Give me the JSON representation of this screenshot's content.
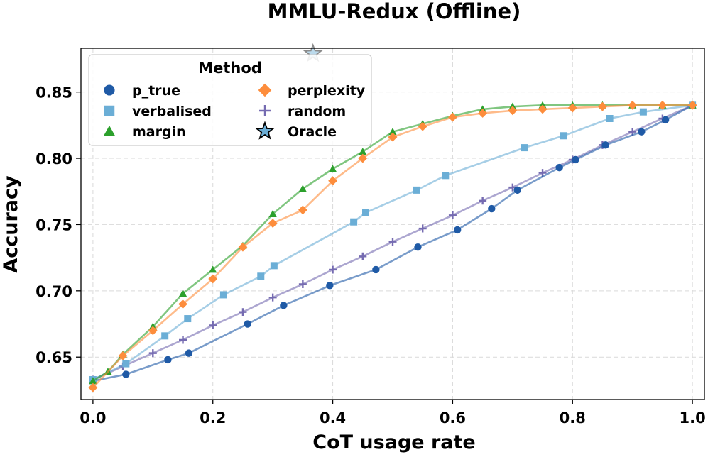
{
  "chart_data": {
    "type": "line",
    "title": "MMLU-Redux (Offline)",
    "xlabel": "CoT usage rate",
    "ylabel": "Accuracy",
    "xlim": [
      -0.02,
      1.02
    ],
    "ylim": [
      0.618,
      0.883
    ],
    "xticks": [
      0.0,
      0.2,
      0.4,
      0.6,
      0.8,
      1.0
    ],
    "xtick_labels": [
      "0.0",
      "0.2",
      "0.4",
      "0.6",
      "0.8",
      "1.0"
    ],
    "yticks": [
      0.65,
      0.7,
      0.75,
      0.8,
      0.85
    ],
    "ytick_labels": [
      "0.65",
      "0.70",
      "0.75",
      "0.80",
      "0.85"
    ],
    "grid": true,
    "legend": {
      "title": "Method",
      "position": "top-left",
      "columns": 2
    },
    "series": [
      {
        "name": "p_true",
        "color": "#1f5aa6",
        "marker": "circle",
        "x": [
          0.0,
          0.055,
          0.125,
          0.16,
          0.258,
          0.318,
          0.395,
          0.472,
          0.542,
          0.608,
          0.665,
          0.708,
          0.778,
          0.805,
          0.855,
          0.915,
          0.955,
          1.0
        ],
        "y": [
          0.632,
          0.637,
          0.648,
          0.653,
          0.675,
          0.689,
          0.704,
          0.716,
          0.733,
          0.746,
          0.762,
          0.776,
          0.793,
          0.799,
          0.81,
          0.82,
          0.829,
          0.84
        ]
      },
      {
        "name": "verbalised",
        "color": "#6baed6",
        "marker": "square",
        "x": [
          0.0,
          0.055,
          0.12,
          0.158,
          0.218,
          0.28,
          0.302,
          0.435,
          0.455,
          0.54,
          0.588,
          0.72,
          0.785,
          0.862,
          0.918,
          1.0
        ],
        "y": [
          0.633,
          0.645,
          0.666,
          0.679,
          0.697,
          0.711,
          0.719,
          0.752,
          0.759,
          0.776,
          0.787,
          0.808,
          0.817,
          0.83,
          0.835,
          0.84
        ]
      },
      {
        "name": "margin",
        "color": "#2ca02c",
        "marker": "triangle",
        "x": [
          0.0,
          0.025,
          0.05,
          0.1,
          0.15,
          0.2,
          0.25,
          0.3,
          0.35,
          0.4,
          0.45,
          0.5,
          0.55,
          0.6,
          0.65,
          0.7,
          0.75,
          0.8,
          0.85,
          0.9,
          0.95,
          1.0
        ],
        "y": [
          0.632,
          0.639,
          0.652,
          0.673,
          0.698,
          0.716,
          0.734,
          0.758,
          0.777,
          0.792,
          0.805,
          0.82,
          0.826,
          0.832,
          0.837,
          0.839,
          0.84,
          0.84,
          0.84,
          0.84,
          0.84,
          0.84
        ]
      },
      {
        "name": "perplexity",
        "color": "#fd8d3c",
        "marker": "diamond",
        "x": [
          0.0,
          0.05,
          0.1,
          0.15,
          0.2,
          0.25,
          0.3,
          0.35,
          0.4,
          0.45,
          0.5,
          0.55,
          0.6,
          0.65,
          0.7,
          0.75,
          0.8,
          0.85,
          0.9,
          0.95,
          1.0
        ],
        "y": [
          0.627,
          0.651,
          0.67,
          0.69,
          0.709,
          0.733,
          0.751,
          0.761,
          0.783,
          0.8,
          0.816,
          0.824,
          0.831,
          0.834,
          0.836,
          0.837,
          0.838,
          0.839,
          0.84,
          0.84,
          0.84
        ]
      },
      {
        "name": "random",
        "color": "#756bb1",
        "marker": "plus",
        "x": [
          0.0,
          0.05,
          0.1,
          0.15,
          0.2,
          0.25,
          0.3,
          0.35,
          0.4,
          0.45,
          0.5,
          0.55,
          0.6,
          0.65,
          0.7,
          0.75,
          0.8,
          0.85,
          0.9,
          0.95,
          1.0
        ],
        "y": [
          0.633,
          0.643,
          0.653,
          0.663,
          0.674,
          0.684,
          0.695,
          0.705,
          0.716,
          0.726,
          0.737,
          0.747,
          0.757,
          0.768,
          0.778,
          0.789,
          0.799,
          0.81,
          0.82,
          0.83,
          0.84
        ]
      },
      {
        "name": "Oracle",
        "color": "#6baed6",
        "marker": "star",
        "x": [
          0.367
        ],
        "y": [
          0.879
        ]
      }
    ]
  }
}
